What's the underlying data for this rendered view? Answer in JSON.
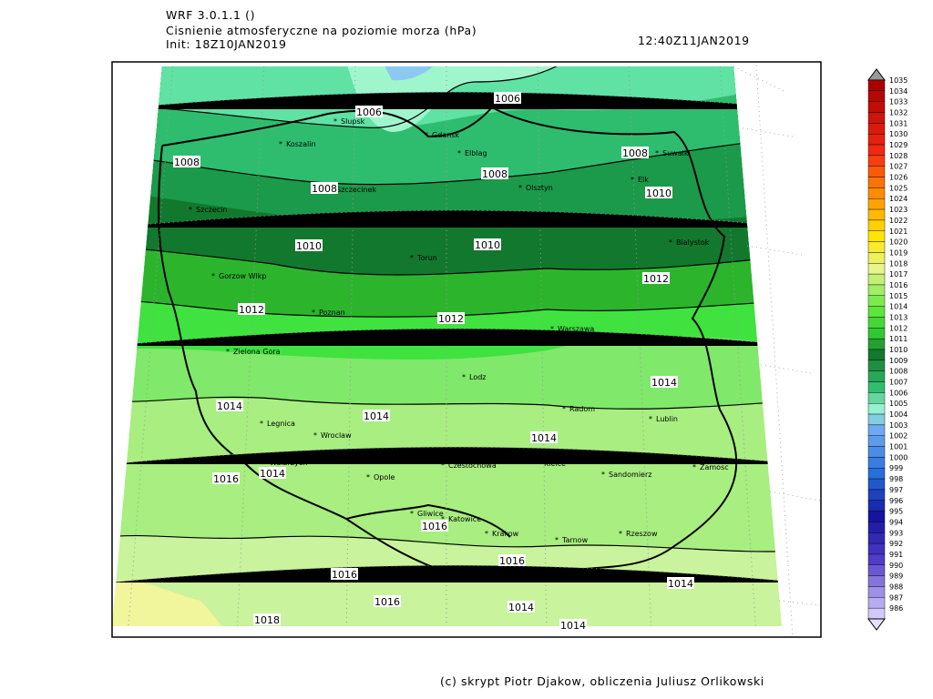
{
  "header": {
    "model": "WRF 3.0.1.1 ()",
    "variable": "Cisnienie atmosferyczne na poziomie morza (hPa)",
    "init": "Init: 18Z10JAN2019",
    "valid": "12:40Z11JAN2019"
  },
  "cities": [
    "Slupsk",
    "Koszalin",
    "Gdansk",
    "Elblag",
    "Olsztyn",
    "Suwalki",
    "Elk",
    "Bialystok",
    "Szczecin",
    "Szczecinek",
    "Torun",
    "Gorzow Wlkp",
    "Poznan",
    "Warszawa",
    "Zielona Gora",
    "Lodz",
    "Radom",
    "Lublin",
    "Legnica",
    "Wroclaw",
    "Walbrzych",
    "Opole",
    "Czestochowa",
    "Kielce",
    "Sandomierz",
    "Zamosc",
    "Gliwice",
    "Katowice",
    "Krakow",
    "Tarnow",
    "Rzeszow"
  ],
  "isobar_labels": [
    1006,
    1006,
    1008,
    1008,
    1008,
    1008,
    1010,
    1010,
    1010,
    1012,
    1012,
    1012,
    1014,
    1014,
    1014,
    1014,
    1016,
    1014,
    1016,
    1016,
    1016,
    1016,
    1014,
    1014,
    1014,
    1018
  ],
  "colorbar": {
    "levels": [
      1035,
      1034,
      1033,
      1032,
      1031,
      1030,
      1029,
      1028,
      1027,
      1026,
      1025,
      1024,
      1023,
      1022,
      1021,
      1020,
      1019,
      1018,
      1017,
      1016,
      1015,
      1014,
      1013,
      1012,
      1011,
      1010,
      1009,
      1008,
      1007,
      1006,
      1005,
      1004,
      1003,
      1002,
      1001,
      1000,
      999,
      998,
      997,
      996,
      995,
      994,
      993,
      992,
      991,
      990,
      989,
      988,
      987,
      986
    ]
  },
  "footer": "(c) skrypt Piotr Djakow, obliczenia Juliusz Orlikowski"
}
